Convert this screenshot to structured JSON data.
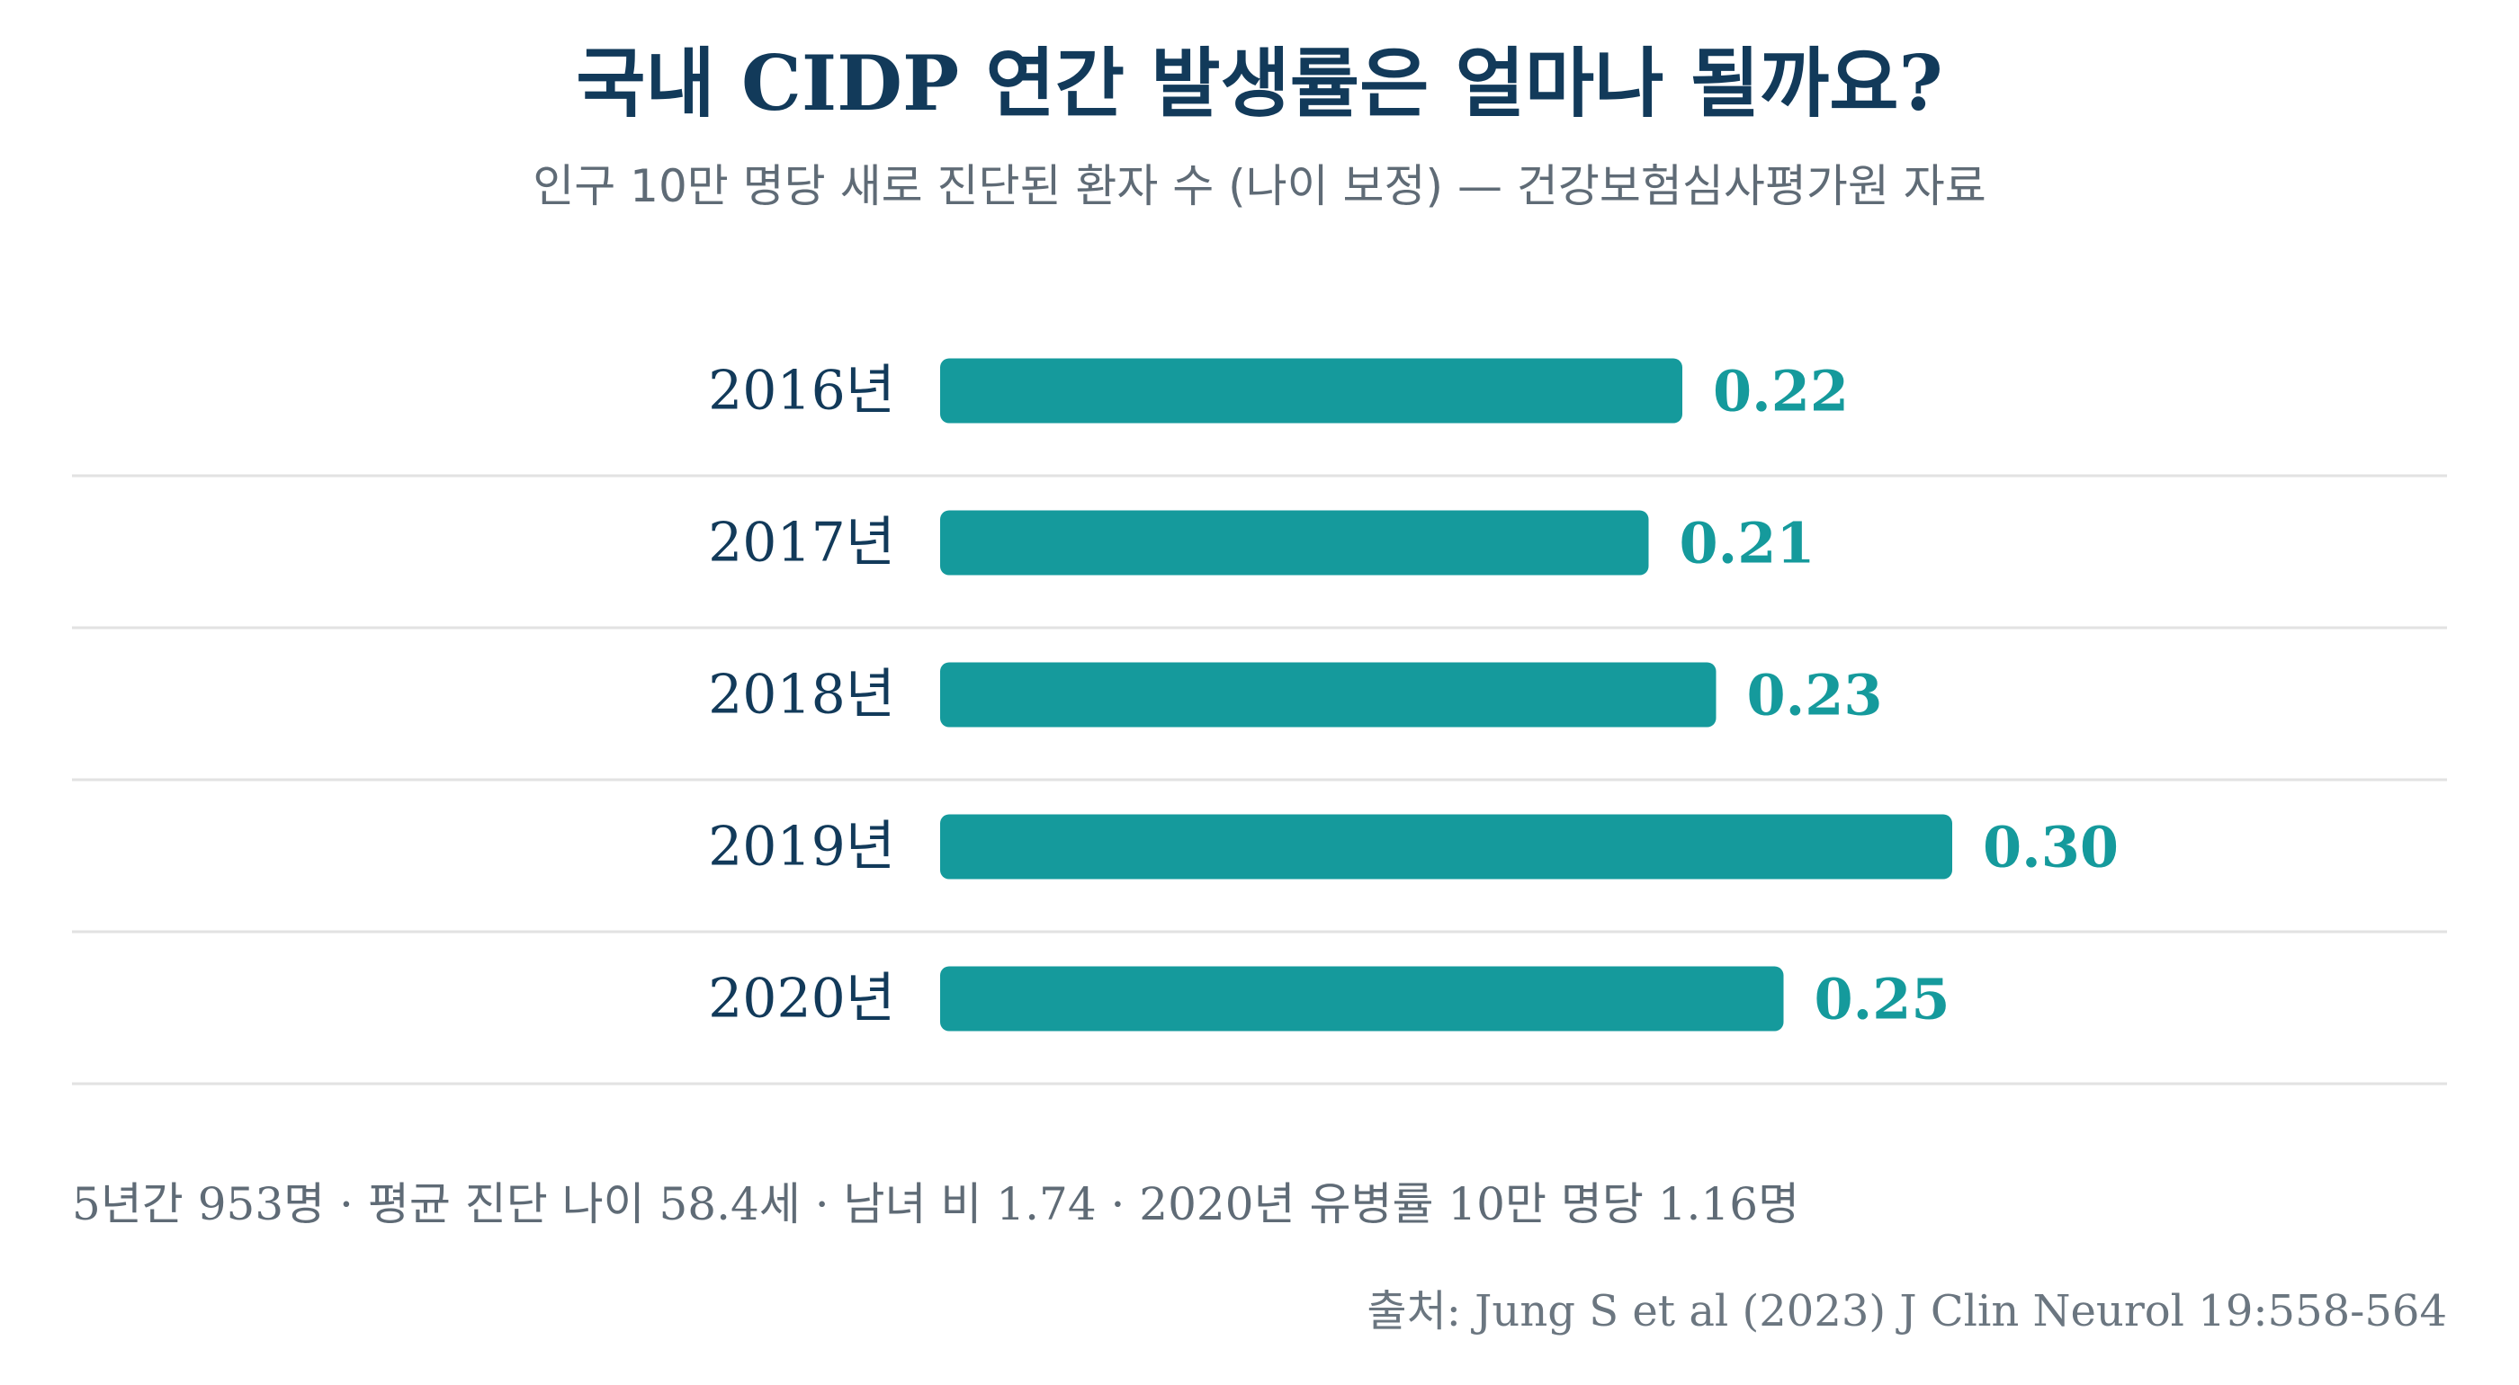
{
  "chart_data": {
    "type": "bar",
    "orientation": "horizontal",
    "title": "국내 CIDP 연간 발생률은 얼마나 될까요?",
    "subtitle": "인구 10만 명당 새로 진단된 환자 수 (나이 보정) — 건강보험심사평가원 자료",
    "categories": [
      "2016년",
      "2017년",
      "2018년",
      "2019년",
      "2020년"
    ],
    "values": [
      0.22,
      0.21,
      0.23,
      0.3,
      0.25
    ],
    "value_labels": [
      "0.22",
      "0.21",
      "0.23",
      "0.30",
      "0.25"
    ],
    "xlabel": "",
    "ylabel": "",
    "xlim": [
      0,
      0.3
    ],
    "grid": false,
    "legend": "none",
    "footnote": "5년간 953명 · 평균 진단 나이 58.4세 · 남녀 비 1.74 · 2020년 유병률 10만 명당 1.16명",
    "source": "출처: Jung S et al (2023) J Clin Neurol 19:558-564"
  },
  "colors": {
    "title": "#123a5a",
    "bar": "#159a9c",
    "value_label": "#159a9c",
    "text_muted": "#5f6b76",
    "separator": "#e2e2e2"
  }
}
